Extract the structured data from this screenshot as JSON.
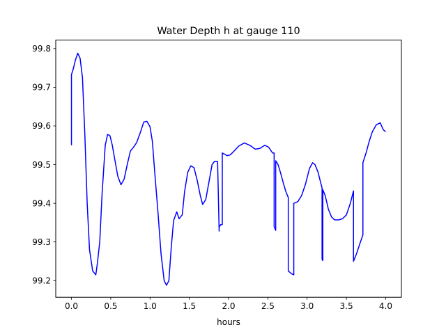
{
  "chart_data": {
    "type": "line",
    "title": "Water Depth h at gauge 110",
    "xlabel": "hours",
    "ylabel": "",
    "xlim": [
      -0.2,
      4.2
    ],
    "ylim": [
      99.157,
      99.822
    ],
    "xticks": [
      0.0,
      0.5,
      1.0,
      1.5,
      2.0,
      2.5,
      3.0,
      3.5,
      4.0
    ],
    "xtick_labels": [
      "0.0",
      "0.5",
      "1.0",
      "1.5",
      "2.0",
      "2.5",
      "3.0",
      "3.5",
      "4.0"
    ],
    "yticks": [
      99.2,
      99.3,
      99.4,
      99.5,
      99.6,
      99.7,
      99.8
    ],
    "ytick_labels": [
      "99.2",
      "99.3",
      "99.4",
      "99.5",
      "99.6",
      "99.7",
      "99.8"
    ],
    "grid": false,
    "series": [
      {
        "color": "#0000ff",
        "x": [
          0.0,
          0.0,
          0.02,
          0.05,
          0.08,
          0.11,
          0.14,
          0.17,
          0.2,
          0.23,
          0.27,
          0.31,
          0.33,
          0.36,
          0.39,
          0.43,
          0.46,
          0.49,
          0.52,
          0.55,
          0.59,
          0.63,
          0.67,
          0.71,
          0.75,
          0.79,
          0.83,
          0.88,
          0.92,
          0.96,
          1.0,
          1.03,
          1.06,
          1.1,
          1.14,
          1.18,
          1.21,
          1.24,
          1.27,
          1.3,
          1.34,
          1.37,
          1.41,
          1.44,
          1.48,
          1.52,
          1.56,
          1.6,
          1.64,
          1.67,
          1.71,
          1.75,
          1.79,
          1.82,
          1.86,
          1.88,
          1.88,
          1.9,
          1.92,
          1.92,
          1.95,
          1.98,
          2.02,
          2.07,
          2.13,
          2.2,
          2.27,
          2.34,
          2.4,
          2.46,
          2.51,
          2.56,
          2.58,
          2.58,
          2.6,
          2.6,
          2.63,
          2.66,
          2.7,
          2.73,
          2.76,
          2.76,
          2.8,
          2.83,
          2.83,
          2.88,
          2.93,
          2.98,
          3.03,
          3.07,
          3.1,
          3.14,
          3.17,
          3.19,
          3.19,
          3.2,
          3.2,
          3.23,
          3.27,
          3.31,
          3.35,
          3.4,
          3.45,
          3.5,
          3.55,
          3.59,
          3.59,
          3.63,
          3.67,
          3.71,
          3.71,
          3.75,
          3.79,
          3.83,
          3.88,
          3.93,
          3.97,
          4.0
        ],
        "y": [
          99.55,
          99.733,
          99.745,
          99.77,
          99.788,
          99.775,
          99.725,
          99.58,
          99.4,
          99.28,
          99.225,
          99.215,
          99.245,
          99.3,
          99.425,
          99.55,
          99.578,
          99.575,
          99.55,
          99.515,
          99.47,
          99.448,
          99.462,
          99.5,
          99.535,
          99.545,
          99.557,
          99.585,
          99.61,
          99.612,
          99.598,
          99.56,
          99.48,
          99.38,
          99.27,
          99.2,
          99.188,
          99.2,
          99.285,
          99.355,
          99.378,
          99.36,
          99.37,
          99.43,
          99.48,
          99.497,
          99.492,
          99.46,
          99.42,
          99.397,
          99.41,
          99.455,
          99.5,
          99.508,
          99.508,
          99.328,
          99.338,
          99.345,
          99.345,
          99.53,
          99.527,
          99.523,
          99.525,
          99.535,
          99.548,
          99.556,
          99.55,
          99.54,
          99.542,
          99.55,
          99.545,
          99.53,
          99.53,
          99.34,
          99.33,
          99.51,
          99.5,
          99.48,
          99.45,
          99.43,
          99.415,
          99.225,
          99.218,
          99.215,
          99.4,
          99.404,
          99.42,
          99.45,
          99.49,
          99.505,
          99.5,
          99.48,
          99.455,
          99.44,
          99.255,
          99.252,
          99.435,
          99.42,
          99.385,
          99.365,
          99.357,
          99.357,
          99.36,
          99.37,
          99.4,
          99.432,
          99.25,
          99.27,
          99.295,
          99.318,
          99.505,
          99.53,
          99.56,
          99.585,
          99.603,
          99.608,
          99.59,
          99.585
        ]
      }
    ]
  }
}
